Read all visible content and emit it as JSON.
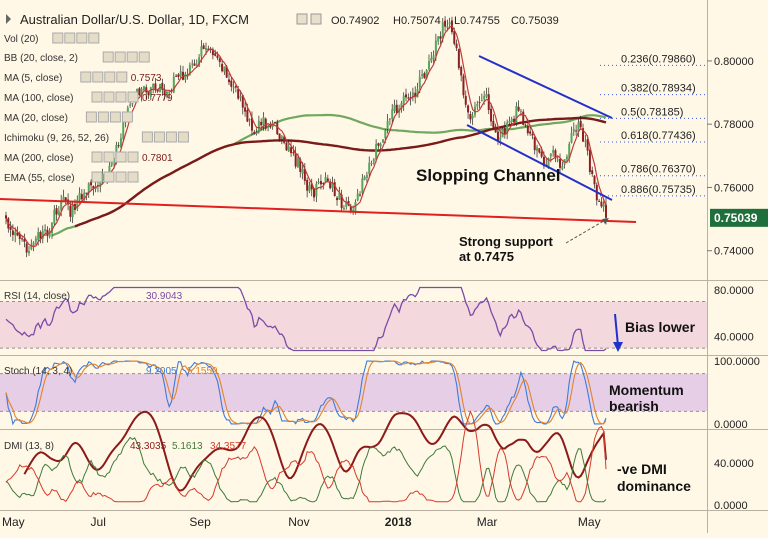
{
  "header": {
    "symbol": "Australian Dollar/U.S. Dollar, 1D, FXCM",
    "open": "O0.74902",
    "high": "H0.75074",
    "low": "L0.74755",
    "close": "C0.75039"
  },
  "indicators": [
    {
      "label": "Vol (20)",
      "value": ""
    },
    {
      "label": "BB (20, close, 2)",
      "value": ""
    },
    {
      "label": "MA (5, close)",
      "value": "0.7573"
    },
    {
      "label": "MA (100, close)",
      "value": "0.7779"
    },
    {
      "label": "MA (20, close)",
      "value": ""
    },
    {
      "label": "Ichimoku (9, 26, 52, 26)",
      "value": ""
    },
    {
      "label": "MA (200, close)",
      "value": "0.7801"
    },
    {
      "label": "EMA (55, close)",
      "value": ""
    }
  ],
  "fib_levels": [
    {
      "label": "0.236(0.79860)",
      "price": 0.7986
    },
    {
      "label": "0.382(0.78934)",
      "price": 0.78934
    },
    {
      "label": "0.5(0.78185)",
      "price": 0.78185
    },
    {
      "label": "0.618(0.77436)",
      "price": 0.77436
    },
    {
      "label": "0.786(0.76370)",
      "price": 0.7637
    },
    {
      "label": "0.886(0.75735)",
      "price": 0.75735
    }
  ],
  "annotations": {
    "channel": "Slopping Channel",
    "support_line1": "Strong support",
    "support_line2": "at 0.7475",
    "rsi_note": "Bias lower",
    "stoch_note1": "Momentum",
    "stoch_note2": "bearish",
    "dmi_note1": "-ve DMI",
    "dmi_note2": "dominance"
  },
  "price_axis": {
    "ticks": [
      {
        "label": "0.80000",
        "value": 0.8
      },
      {
        "label": "0.78000",
        "value": 0.78
      },
      {
        "label": "0.76000",
        "value": 0.76
      },
      {
        "label": "0.74000",
        "value": 0.74
      }
    ],
    "current": "0.75039",
    "current_value": 0.75039,
    "range": [
      0.732,
      0.818
    ]
  },
  "rsi": {
    "label": "RSI (14, close)",
    "value": "30.9043",
    "ticks": [
      {
        "label": "80.0000",
        "value": 80
      },
      {
        "label": "40.0000",
        "value": 40
      }
    ],
    "range": [
      25,
      85
    ],
    "bands": [
      70,
      30
    ]
  },
  "stoch": {
    "label": "Stoch (14, 3, 4)",
    "k": "9.2005",
    "d": "5.1559",
    "ticks": [
      {
        "label": "100.0000",
        "value": 100
      },
      {
        "label": "0.0000",
        "value": 0
      }
    ],
    "range": [
      -5,
      105
    ],
    "bands": [
      80,
      20
    ]
  },
  "dmi": {
    "label": "DMI (13, 8)",
    "adx": "43.3035",
    "plus": "5.1613",
    "minus": "34.3577",
    "ticks": [
      {
        "label": "40.0000",
        "value": 40
      },
      {
        "label": "0.0000",
        "value": 0
      }
    ],
    "range": [
      -3,
      70
    ]
  },
  "x_axis": [
    {
      "label": "May",
      "index": 0
    },
    {
      "label": "Jul",
      "index": 42
    },
    {
      "label": "Sep",
      "index": 85
    },
    {
      "label": "Nov",
      "index": 128
    },
    {
      "label": "2018",
      "index": 170
    },
    {
      "label": "Mar",
      "index": 210
    },
    {
      "label": "May",
      "index": 254
    }
  ],
  "colors": {
    "background": "#fff8e6",
    "bull": "#56a55a",
    "bear": "#8c1f1f",
    "ma5": "#c23a3a",
    "ma100": "#6fa85e",
    "ma200": "#7a1b1b",
    "channel": "#2431c9",
    "support": "#e02020",
    "rsi": "#7b4ba8",
    "band_fill": "#f3d8dd",
    "stoch_band": "#e6cfe6",
    "stoch_k": "#3d7bd9",
    "stoch_d": "#e2822d",
    "adx": "#8b1a1a",
    "di_plus": "#3f7a3a",
    "di_minus": "#d63b2b",
    "fib_dots": "#3a55d8",
    "current_label_bg": "#1f6f3c"
  },
  "chart_data": {
    "type": "candlestick",
    "title": "Australian Dollar/U.S. Dollar, 1D, FXCM",
    "bars": 262,
    "ylim": [
      0.732,
      0.818
    ],
    "anchors": [
      [
        0,
        0.7495
      ],
      [
        4,
        0.7445
      ],
      [
        8,
        0.741
      ],
      [
        13,
        0.7435
      ],
      [
        18,
        0.7455
      ],
      [
        22,
        0.753
      ],
      [
        25,
        0.7555
      ],
      [
        28,
        0.7525
      ],
      [
        32,
        0.757
      ],
      [
        36,
        0.7605
      ],
      [
        40,
        0.7625
      ],
      [
        44,
        0.7645
      ],
      [
        48,
        0.7725
      ],
      [
        52,
        0.7815
      ],
      [
        56,
        0.7895
      ],
      [
        60,
        0.7905
      ],
      [
        63,
        0.7915
      ],
      [
        66,
        0.7915
      ],
      [
        70,
        0.7905
      ],
      [
        74,
        0.7945
      ],
      [
        78,
        0.7965
      ],
      [
        82,
        0.7975
      ],
      [
        85,
        0.8045
      ],
      [
        88,
        0.8025
      ],
      [
        92,
        0.7995
      ],
      [
        96,
        0.7955
      ],
      [
        100,
        0.7905
      ],
      [
        104,
        0.7835
      ],
      [
        108,
        0.7785
      ],
      [
        112,
        0.7805
      ],
      [
        116,
        0.7795
      ],
      [
        120,
        0.7755
      ],
      [
        124,
        0.7705
      ],
      [
        128,
        0.7665
      ],
      [
        131,
        0.7605
      ],
      [
        134,
        0.7585
      ],
      [
        138,
        0.7625
      ],
      [
        142,
        0.7605
      ],
      [
        146,
        0.7555
      ],
      [
        150,
        0.7515
      ],
      [
        153,
        0.7575
      ],
      [
        157,
        0.7645
      ],
      [
        162,
        0.7735
      ],
      [
        166,
        0.7805
      ],
      [
        170,
        0.7855
      ],
      [
        174,
        0.7875
      ],
      [
        178,
        0.7905
      ],
      [
        182,
        0.7955
      ],
      [
        186,
        0.8025
      ],
      [
        190,
        0.8105
      ],
      [
        193,
        0.8125
      ],
      [
        196,
        0.8025
      ],
      [
        199,
        0.7905
      ],
      [
        202,
        0.7825
      ],
      [
        205,
        0.7875
      ],
      [
        208,
        0.7905
      ],
      [
        211,
        0.7825
      ],
      [
        214,
        0.7755
      ],
      [
        217,
        0.7775
      ],
      [
        220,
        0.7805
      ],
      [
        223,
        0.7855
      ],
      [
        226,
        0.7795
      ],
      [
        229,
        0.7745
      ],
      [
        232,
        0.7705
      ],
      [
        235,
        0.7675
      ],
      [
        238,
        0.7705
      ],
      [
        241,
        0.7655
      ],
      [
        244,
        0.7715
      ],
      [
        247,
        0.7805
      ],
      [
        250,
        0.7785
      ],
      [
        253,
        0.7705
      ],
      [
        255,
        0.7625
      ],
      [
        257,
        0.7565
      ],
      [
        259,
        0.7545
      ],
      [
        261,
        0.75039
      ]
    ],
    "overlays": [
      "MA 5",
      "MA 100",
      "MA 200",
      "Descending channel",
      "Support line",
      "Fibonacci retracement"
    ]
  }
}
